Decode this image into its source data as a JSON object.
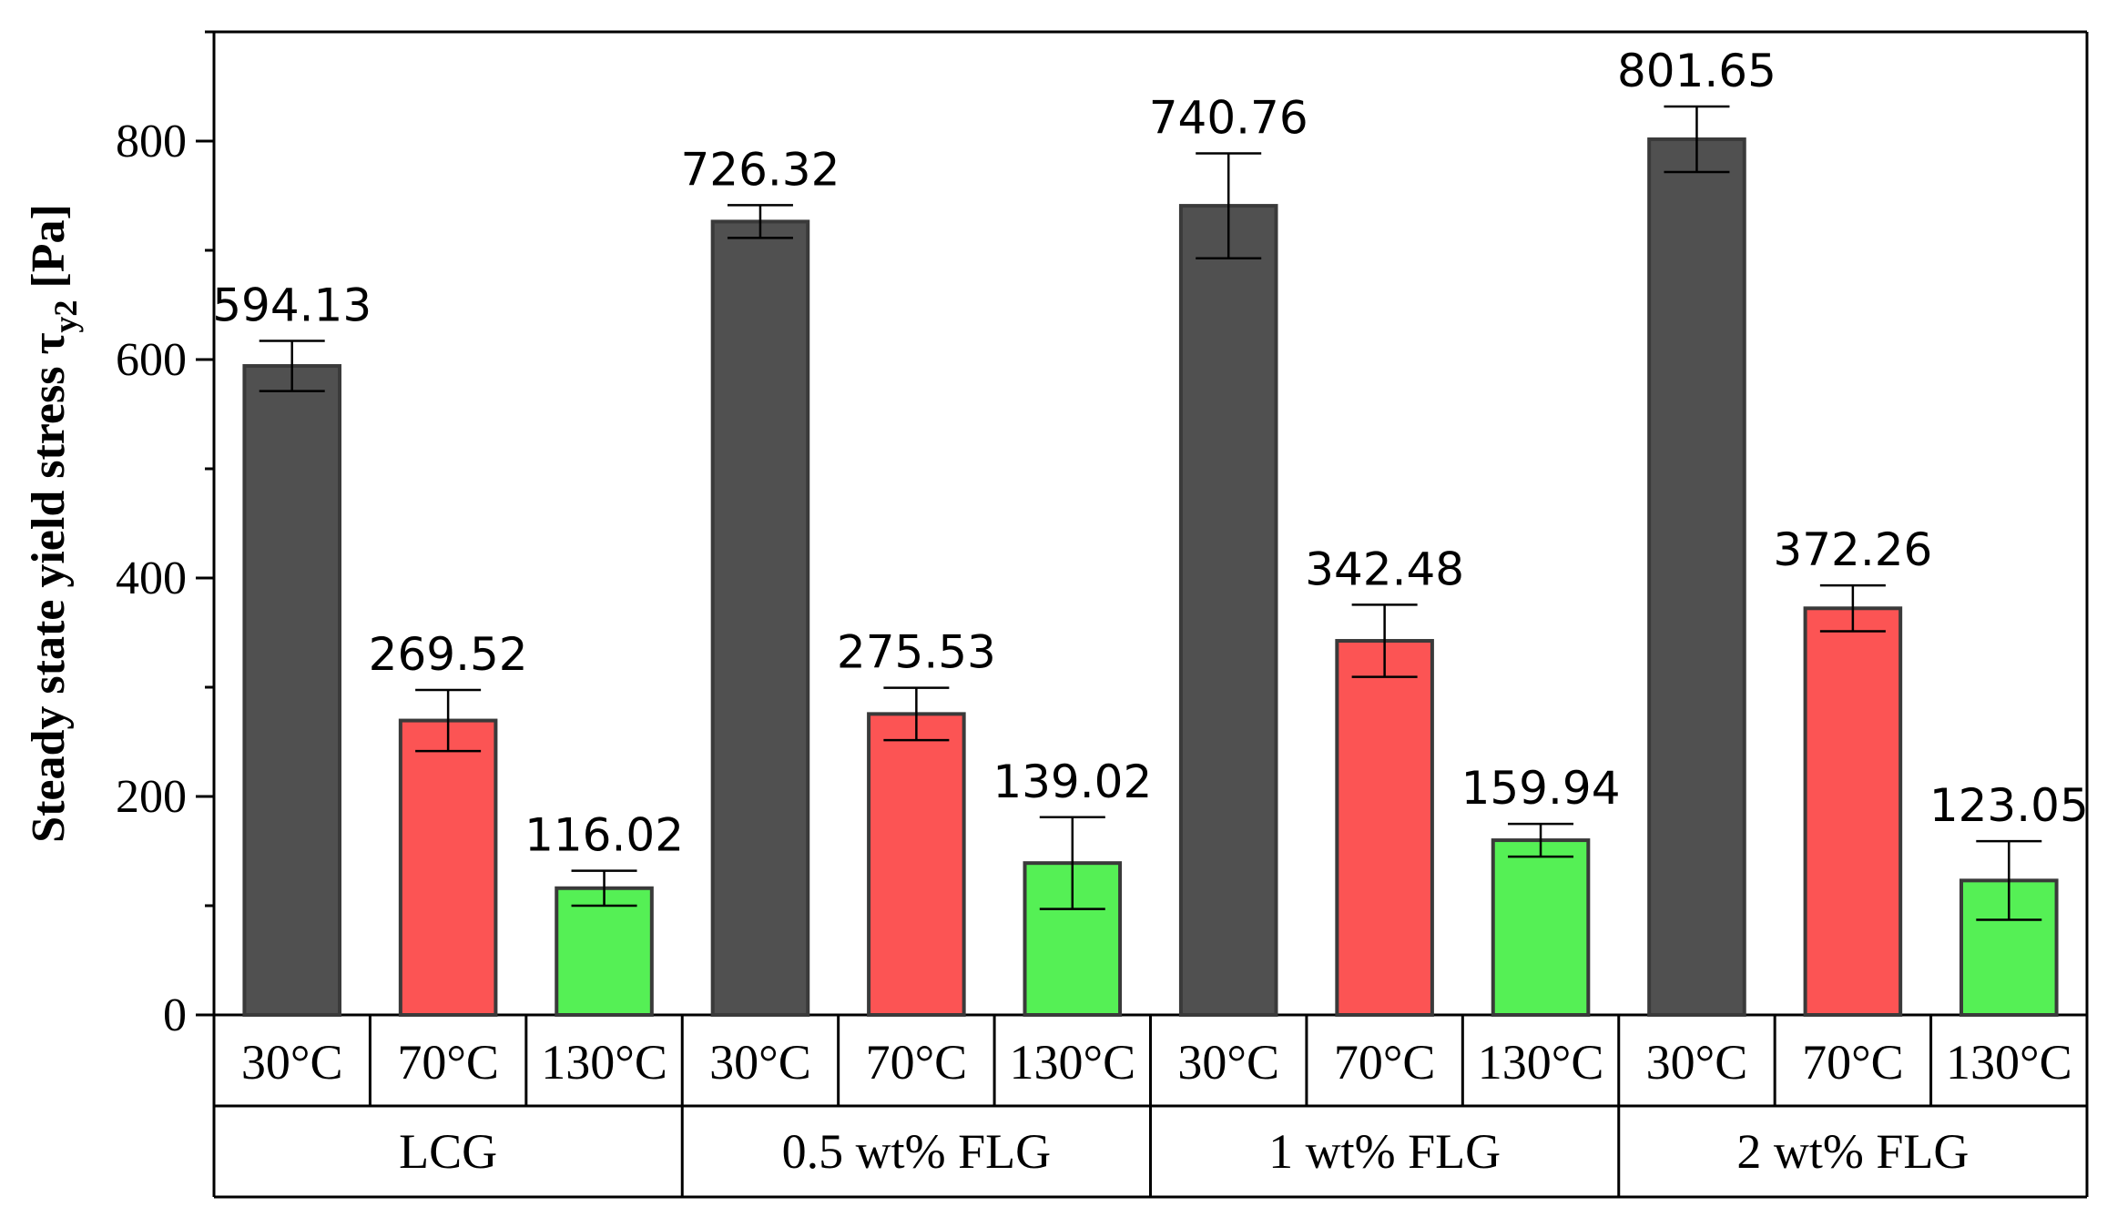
{
  "chart_data": {
    "type": "bar",
    "ylabel_main": "Steady state yield stress",
    "ylabel_symbol": "τ",
    "ylabel_subscript": "y2",
    "ylabel_unit": "[Pa]",
    "ylim": [
      0,
      900
    ],
    "yticks": [
      0,
      200,
      400,
      600,
      800
    ],
    "groups": [
      {
        "name": "LCG",
        "temps": [
          "30°C",
          "70°C",
          "130°C"
        ],
        "values": [
          594.13,
          269.52,
          116.02
        ],
        "errors": [
          23,
          28,
          16
        ],
        "labels": [
          "594.13",
          "269.52",
          "116.02"
        ]
      },
      {
        "name": "0.5 wt% FLG",
        "temps": [
          "30°C",
          "70°C",
          "130°C"
        ],
        "values": [
          726.32,
          275.53,
          139.02
        ],
        "errors": [
          15,
          24,
          42
        ],
        "labels": [
          "726.32",
          "275.53",
          "139.02"
        ]
      },
      {
        "name": "1 wt% FLG",
        "temps": [
          "30°C",
          "70°C",
          "130°C"
        ],
        "values": [
          740.76,
          342.48,
          159.94
        ],
        "errors": [
          48,
          33,
          15
        ],
        "labels": [
          "740.76",
          "342.48",
          "159.94"
        ]
      },
      {
        "name": "2 wt% FLG",
        "temps": [
          "30°C",
          "70°C",
          "130°C"
        ],
        "values": [
          801.65,
          372.26,
          123.05
        ],
        "errors": [
          30,
          21,
          36
        ],
        "labels": [
          "801.65",
          "372.26",
          "123.05"
        ]
      }
    ],
    "colors": {
      "30°C": "#505050",
      "70°C": "#fc5454",
      "130°C": "#55f055"
    },
    "grid": false
  }
}
